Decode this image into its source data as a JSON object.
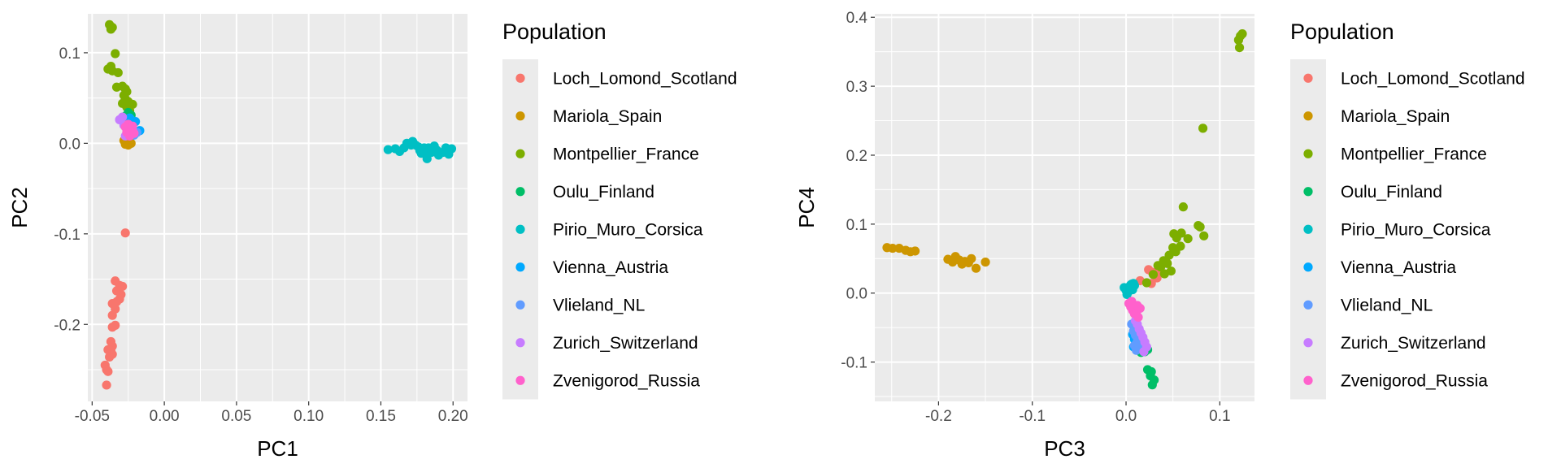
{
  "chart_data": [
    {
      "type": "scatter",
      "xlabel": "PC1",
      "ylabel": "PC2",
      "xlim": [
        -0.053,
        0.21
      ],
      "ylim": [
        -0.285,
        0.143
      ],
      "xticks": [
        -0.05,
        0.0,
        0.05,
        0.1,
        0.15,
        0.2
      ],
      "xtick_labels": [
        "-0.05",
        "0.00",
        "0.05",
        "0.10",
        "0.15",
        "0.20"
      ],
      "yticks": [
        0.1,
        0.0,
        -0.1,
        -0.2
      ],
      "ytick_labels": [
        "0.1",
        "0.0",
        "-0.1",
        "-0.2"
      ],
      "grid": true,
      "legend_title": "Population",
      "legend_position": "right",
      "series": [
        {
          "name": "Loch_Lomond_Scotland",
          "color": "#F8766D",
          "points": [
            [
              -0.027,
              -0.099
            ],
            [
              -0.034,
              -0.152
            ],
            [
              -0.031,
              -0.157
            ],
            [
              -0.029,
              -0.158
            ],
            [
              -0.033,
              -0.163
            ],
            [
              -0.03,
              -0.167
            ],
            [
              -0.031,
              -0.172
            ],
            [
              -0.033,
              -0.175
            ],
            [
              -0.036,
              -0.177
            ],
            [
              -0.034,
              -0.183
            ],
            [
              -0.036,
              -0.19
            ],
            [
              -0.034,
              -0.201
            ],
            [
              -0.036,
              -0.203
            ],
            [
              -0.037,
              -0.219
            ],
            [
              -0.036,
              -0.224
            ],
            [
              -0.039,
              -0.228
            ],
            [
              -0.037,
              -0.229
            ],
            [
              -0.036,
              -0.233
            ],
            [
              -0.038,
              -0.236
            ],
            [
              -0.041,
              -0.245
            ],
            [
              -0.04,
              -0.25
            ],
            [
              -0.039,
              -0.252
            ],
            [
              -0.04,
              -0.267
            ]
          ]
        },
        {
          "name": "Mariola_Spain",
          "color": "#CD9600",
          "points": [
            [
              -0.028,
              0.003
            ],
            [
              -0.026,
              0.001
            ],
            [
              -0.024,
              0.002
            ],
            [
              -0.027,
              -0.001
            ],
            [
              -0.025,
              -0.002
            ],
            [
              -0.023,
              0.0
            ]
          ]
        },
        {
          "name": "Montpellier_France",
          "color": "#7CAE00",
          "points": [
            [
              -0.038,
              0.131
            ],
            [
              -0.037,
              0.126
            ],
            [
              -0.036,
              0.128
            ],
            [
              -0.034,
              0.099
            ],
            [
              -0.039,
              0.082
            ],
            [
              -0.037,
              0.085
            ],
            [
              -0.036,
              0.08
            ],
            [
              -0.032,
              0.078
            ],
            [
              -0.033,
              0.062
            ],
            [
              -0.029,
              0.063
            ],
            [
              -0.027,
              0.06
            ],
            [
              -0.026,
              0.057
            ],
            [
              -0.028,
              0.053
            ],
            [
              -0.027,
              0.049
            ],
            [
              -0.025,
              0.046
            ],
            [
              -0.029,
              0.044
            ],
            [
              -0.022,
              0.043
            ],
            [
              -0.026,
              0.04
            ],
            [
              -0.024,
              0.036
            ]
          ]
        },
        {
          "name": "Oulu_Finland",
          "color": "#00BE67",
          "points": [
            [
              -0.027,
              0.03
            ],
            [
              -0.025,
              0.034
            ],
            [
              -0.024,
              0.028
            ],
            [
              -0.026,
              0.024
            ],
            [
              -0.023,
              0.031
            ]
          ]
        },
        {
          "name": "Pirio_Muro_Corsica",
          "color": "#00BFC4",
          "points": [
            [
              -0.025,
              0.022
            ],
            [
              -0.023,
              0.026
            ],
            [
              0.155,
              -0.007
            ],
            [
              0.16,
              -0.006
            ],
            [
              0.163,
              -0.009
            ],
            [
              0.166,
              -0.005
            ],
            [
              0.168,
              0.0
            ],
            [
              0.171,
              -0.002
            ],
            [
              0.172,
              0.002
            ],
            [
              0.174,
              -0.002
            ],
            [
              0.176,
              -0.004
            ],
            [
              0.177,
              -0.008
            ],
            [
              0.178,
              -0.011
            ],
            [
              0.18,
              -0.005
            ],
            [
              0.181,
              -0.009
            ],
            [
              0.182,
              -0.017
            ],
            [
              0.183,
              -0.005
            ],
            [
              0.185,
              -0.01
            ],
            [
              0.187,
              -0.003
            ],
            [
              0.189,
              -0.008
            ],
            [
              0.19,
              -0.013
            ],
            [
              0.193,
              -0.01
            ],
            [
              0.195,
              -0.005
            ],
            [
              0.197,
              -0.012
            ],
            [
              0.199,
              -0.006
            ]
          ]
        },
        {
          "name": "Vienna_Austria",
          "color": "#00A9FF",
          "points": [
            [
              -0.017,
              0.014
            ],
            [
              -0.022,
              0.021
            ],
            [
              -0.02,
              0.024
            ],
            [
              -0.024,
              0.028
            ]
          ]
        },
        {
          "name": "Vlieland_NL",
          "color": "#619CFF",
          "points": [
            [
              -0.024,
              0.017
            ],
            [
              -0.021,
              0.009
            ],
            [
              -0.025,
              0.019
            ],
            [
              -0.019,
              0.012
            ]
          ]
        },
        {
          "name": "Zurich_Switzerland",
          "color": "#C77CFF",
          "points": [
            [
              -0.031,
              0.026
            ],
            [
              -0.029,
              0.029
            ],
            [
              -0.028,
              0.02
            ],
            [
              -0.026,
              0.016
            ],
            [
              -0.024,
              0.011
            ],
            [
              -0.022,
              0.014
            ],
            [
              -0.027,
              0.008
            ]
          ]
        },
        {
          "name": "Zvenigorod_Russia",
          "color": "#FF61CC",
          "points": [
            [
              -0.027,
              0.018
            ],
            [
              -0.025,
              0.021
            ],
            [
              -0.023,
              0.016
            ],
            [
              -0.026,
              0.012
            ],
            [
              -0.022,
              0.019
            ],
            [
              -0.024,
              0.008
            ],
            [
              -0.021,
              0.011
            ]
          ]
        }
      ]
    },
    {
      "type": "scatter",
      "xlabel": "PC3",
      "ylabel": "PC4",
      "xlim": [
        -0.268,
        0.137
      ],
      "ylim": [
        -0.157,
        0.405
      ],
      "xticks": [
        -0.2,
        -0.1,
        0.0,
        0.1
      ],
      "xtick_labels": [
        "-0.2",
        "-0.1",
        "0.0",
        "0.1"
      ],
      "yticks": [
        0.4,
        0.3,
        0.2,
        0.1,
        0.0,
        -0.1
      ],
      "ytick_labels": [
        "0.4",
        "0.3",
        "0.2",
        "0.1",
        "0.0",
        "-0.1"
      ],
      "grid": true,
      "legend_title": "Population",
      "legend_position": "right",
      "series": [
        {
          "name": "Loch_Lomond_Scotland",
          "color": "#F8766D",
          "points": [
            [
              0.015,
              0.018
            ],
            [
              0.024,
              0.034
            ],
            [
              0.028,
              0.03
            ],
            [
              0.031,
              0.027
            ],
            [
              0.033,
              0.022
            ],
            [
              0.027,
              0.014
            ],
            [
              0.035,
              0.033
            ]
          ]
        },
        {
          "name": "Mariola_Spain",
          "color": "#CD9600",
          "points": [
            [
              -0.255,
              0.066
            ],
            [
              -0.249,
              0.065
            ],
            [
              -0.242,
              0.065
            ],
            [
              -0.235,
              0.062
            ],
            [
              -0.23,
              0.06
            ],
            [
              -0.225,
              0.061
            ],
            [
              -0.19,
              0.049
            ],
            [
              -0.185,
              0.045
            ],
            [
              -0.182,
              0.053
            ],
            [
              -0.178,
              0.048
            ],
            [
              -0.175,
              0.042
            ],
            [
              -0.172,
              0.046
            ],
            [
              -0.168,
              0.044
            ],
            [
              -0.165,
              0.05
            ],
            [
              -0.16,
              0.036
            ],
            [
              -0.15,
              0.045
            ]
          ]
        },
        {
          "name": "Montpellier_France",
          "color": "#7CAE00",
          "points": [
            [
              0.12,
              0.367
            ],
            [
              0.122,
              0.373
            ],
            [
              0.124,
              0.376
            ],
            [
              0.121,
              0.356
            ],
            [
              0.082,
              0.239
            ],
            [
              0.061,
              0.125
            ],
            [
              0.079,
              0.096
            ],
            [
              0.077,
              0.098
            ],
            [
              0.083,
              0.083
            ],
            [
              0.051,
              0.086
            ],
            [
              0.059,
              0.087
            ],
            [
              0.066,
              0.079
            ],
            [
              0.054,
              0.08
            ],
            [
              0.05,
              0.066
            ],
            [
              0.058,
              0.068
            ],
            [
              0.053,
              0.06
            ],
            [
              0.046,
              0.055
            ],
            [
              0.04,
              0.047
            ],
            [
              0.044,
              0.043
            ],
            [
              0.037,
              0.038
            ],
            [
              0.034,
              0.04
            ],
            [
              0.048,
              0.032
            ],
            [
              0.041,
              0.028
            ],
            [
              0.029,
              0.027
            ],
            [
              0.022,
              0.015
            ]
          ]
        },
        {
          "name": "Oulu_Finland",
          "color": "#00BE67",
          "points": [
            [
              0.023,
              -0.111
            ],
            [
              0.027,
              -0.114
            ],
            [
              0.026,
              -0.12
            ],
            [
              0.03,
              -0.126
            ],
            [
              0.028,
              -0.133
            ],
            [
              0.02,
              -0.085
            ],
            [
              0.023,
              -0.082
            ],
            [
              0.016,
              -0.086
            ]
          ]
        },
        {
          "name": "Pirio_Muro_Corsica",
          "color": "#00BFC4",
          "points": [
            [
              -0.002,
              0.008
            ],
            [
              0.0,
              0.004
            ],
            [
              0.002,
              0.001
            ],
            [
              0.004,
              0.01
            ],
            [
              0.006,
              0.013
            ],
            [
              0.008,
              0.014
            ],
            [
              0.003,
              0.006
            ],
            [
              0.001,
              -0.002
            ],
            [
              0.007,
              0.005
            ],
            [
              0.009,
              0.011
            ],
            [
              0.005,
              0.012
            ]
          ]
        },
        {
          "name": "Vienna_Austria",
          "color": "#00A9FF",
          "points": [
            [
              0.007,
              -0.06
            ],
            [
              0.009,
              -0.067
            ],
            [
              0.011,
              -0.073
            ],
            [
              0.008,
              -0.078
            ],
            [
              0.013,
              -0.065
            ],
            [
              0.015,
              -0.072
            ]
          ]
        },
        {
          "name": "Vlieland_NL",
          "color": "#619CFF",
          "points": [
            [
              0.006,
              -0.045
            ],
            [
              0.008,
              -0.055
            ],
            [
              0.01,
              -0.061
            ],
            [
              0.012,
              -0.07
            ],
            [
              0.014,
              -0.063
            ],
            [
              0.016,
              -0.079
            ],
            [
              0.009,
              -0.076
            ],
            [
              0.011,
              -0.083
            ]
          ]
        },
        {
          "name": "Zurich_Switzerland",
          "color": "#C77CFF",
          "points": [
            [
              0.01,
              -0.04
            ],
            [
              0.012,
              -0.045
            ],
            [
              0.014,
              -0.052
            ],
            [
              0.016,
              -0.058
            ],
            [
              0.018,
              -0.064
            ],
            [
              0.02,
              -0.071
            ],
            [
              0.022,
              -0.078
            ],
            [
              0.019,
              -0.085
            ]
          ]
        },
        {
          "name": "Zvenigorod_Russia",
          "color": "#FF61CC",
          "points": [
            [
              0.003,
              -0.015
            ],
            [
              0.005,
              -0.02
            ],
            [
              0.007,
              -0.025
            ],
            [
              0.009,
              -0.03
            ],
            [
              0.011,
              -0.028
            ],
            [
              0.013,
              -0.035
            ],
            [
              0.015,
              -0.022
            ],
            [
              0.006,
              -0.012
            ],
            [
              0.012,
              -0.018
            ]
          ]
        }
      ]
    }
  ]
}
